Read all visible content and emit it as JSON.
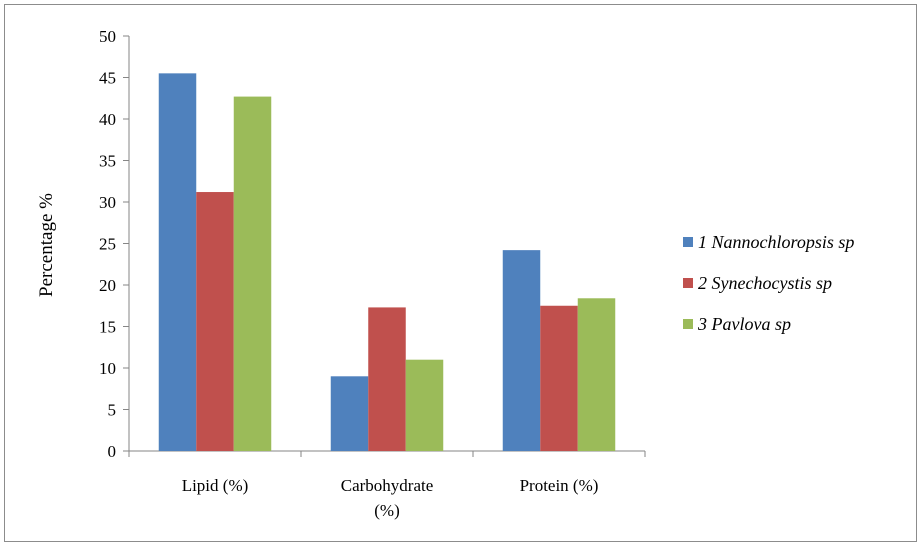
{
  "chart_data": {
    "type": "bar",
    "title": "",
    "xlabel": "",
    "ylabel": "Percentage %",
    "ylim": [
      0,
      50
    ],
    "yticks": [
      "0",
      "5",
      "10",
      "15",
      "20",
      "25",
      "30",
      "35",
      "40",
      "45",
      "50"
    ],
    "categories": [
      [
        "Lipid (%)"
      ],
      [
        "Carbohydrate",
        "(%)"
      ],
      [
        "Protein (%)"
      ]
    ],
    "series": [
      {
        "name": "1 Nannochloropsis sp",
        "color": "#4F81BD",
        "values": [
          45.5,
          9.0,
          24.2
        ]
      },
      {
        "name": "2 Synechocystis sp",
        "color": "#C0504D",
        "values": [
          31.2,
          17.3,
          17.5
        ]
      },
      {
        "name": "3 Pavlova sp",
        "color": "#9BBB59",
        "values": [
          42.7,
          11.0,
          18.4
        ]
      }
    ],
    "grid": false,
    "legend_position": "right"
  }
}
